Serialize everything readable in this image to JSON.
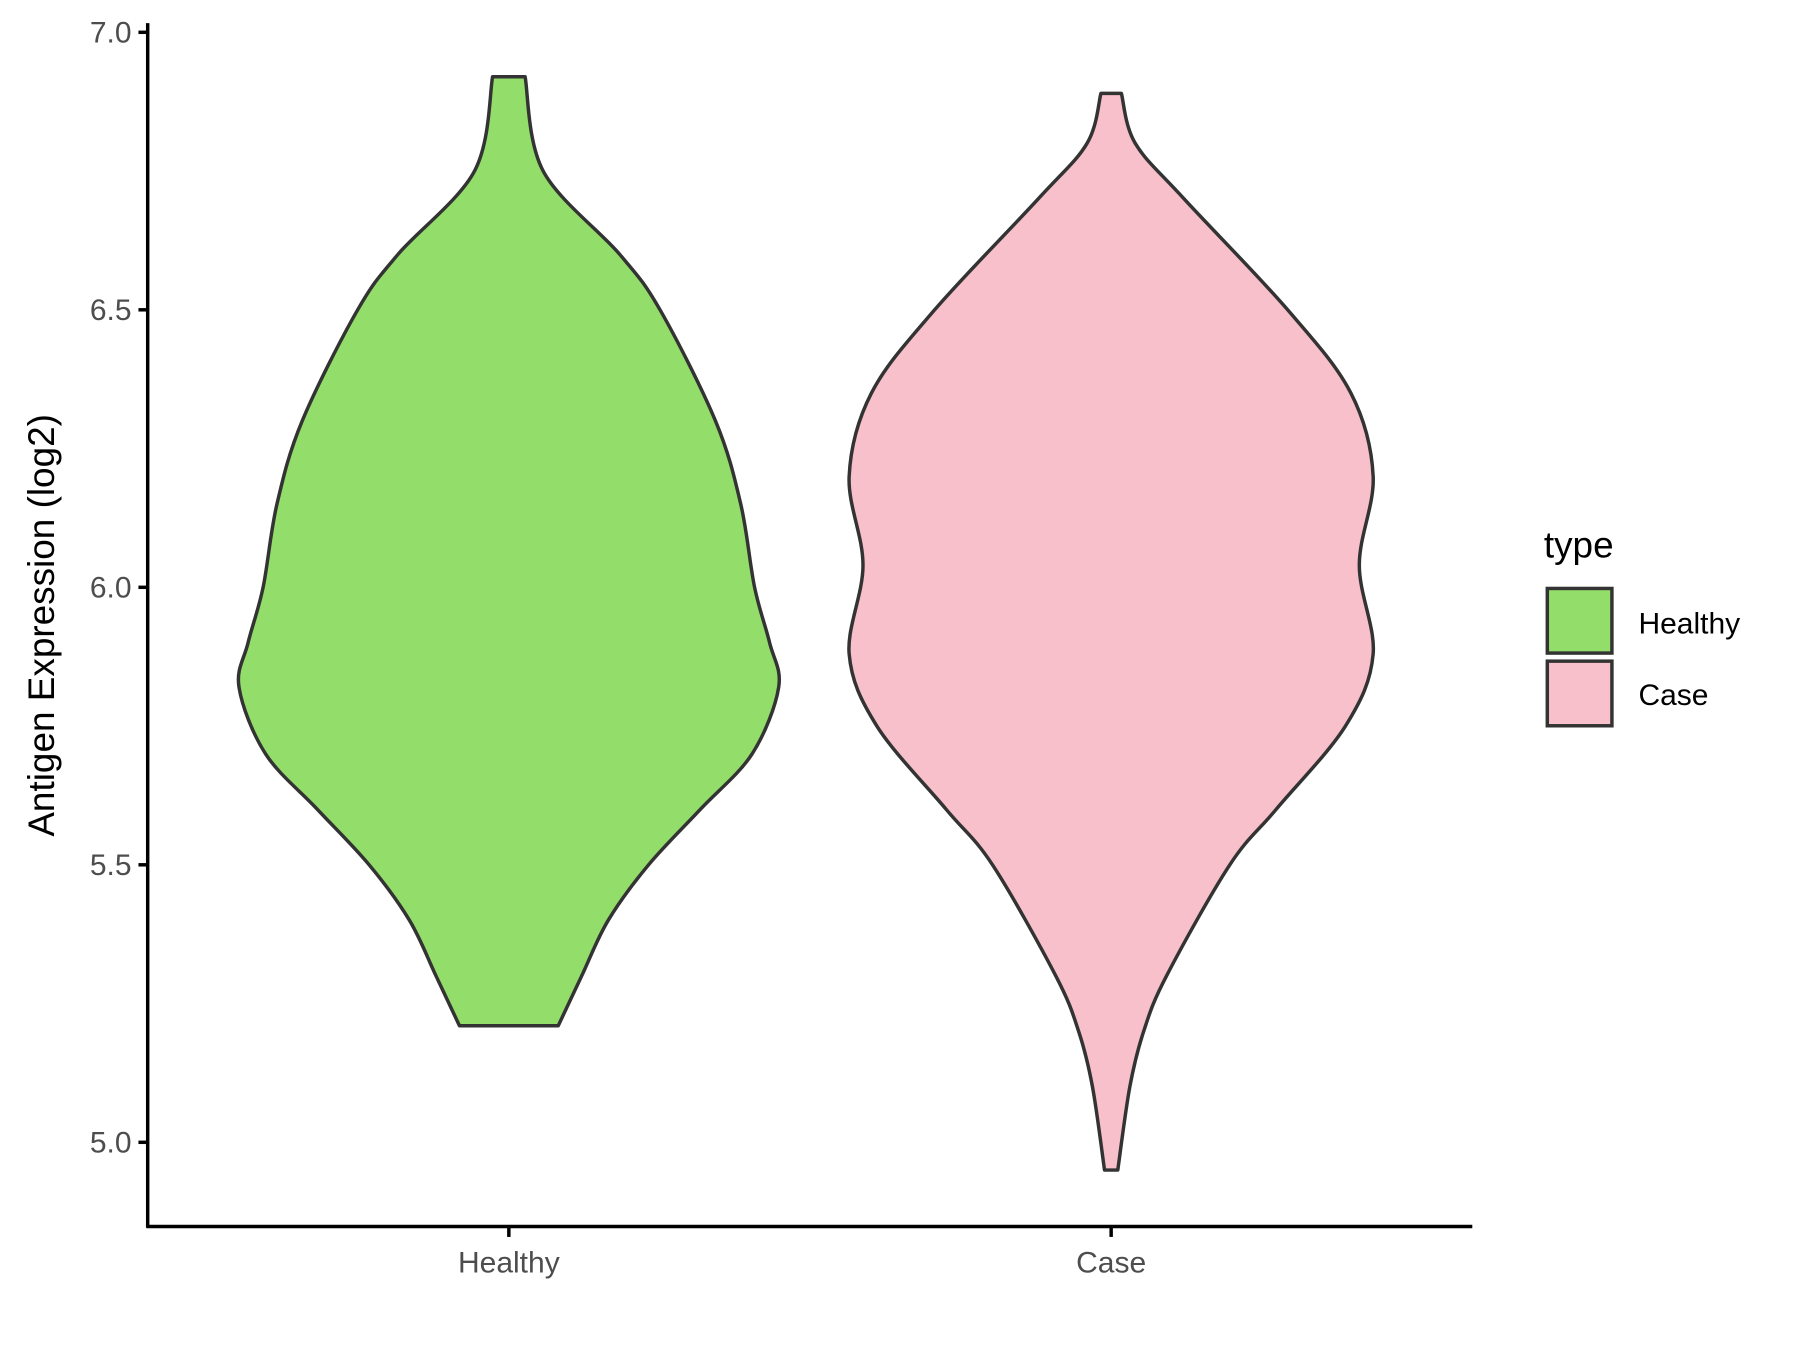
{
  "chart_data": {
    "type": "violin",
    "title": "",
    "xlabel": "",
    "ylabel": "Antigen Expression (log2)",
    "ylim": [
      4.85,
      7.02
    ],
    "yticks": [
      "5.0",
      "5.5",
      "6.0",
      "6.5",
      "7.0"
    ],
    "ytick_values": [
      5.0,
      5.5,
      6.0,
      6.5,
      7.0
    ],
    "categories": [
      "Healthy",
      "Case"
    ],
    "grid": false,
    "legend": {
      "title": "type",
      "position": "right",
      "entries": [
        "Healthy",
        "Case"
      ]
    },
    "series": [
      {
        "name": "Healthy",
        "color": "#93DD6A",
        "min": 5.21,
        "max": 6.92,
        "profile_y": [
          6.92,
          6.75,
          6.6,
          6.5,
          6.3,
          6.15,
          6.0,
          5.9,
          5.82,
          5.7,
          5.6,
          5.5,
          5.4,
          5.3,
          5.21
        ],
        "profile_halfwidth": [
          0.027,
          0.057,
          0.184,
          0.251,
          0.343,
          0.385,
          0.408,
          0.433,
          0.448,
          0.404,
          0.318,
          0.232,
          0.165,
          0.121,
          0.082
        ]
      },
      {
        "name": "Case",
        "color": "#F7C0CB",
        "min": 4.95,
        "max": 6.89,
        "profile_y": [
          6.89,
          6.8,
          6.7,
          6.5,
          6.35,
          6.2,
          6.04,
          5.88,
          5.75,
          5.6,
          5.5,
          5.3,
          5.2,
          5.1,
          4.95
        ],
        "profile_halfwidth": [
          0.017,
          0.04,
          0.121,
          0.293,
          0.398,
          0.435,
          0.412,
          0.435,
          0.389,
          0.274,
          0.197,
          0.092,
          0.054,
          0.031,
          0.011
        ]
      }
    ],
    "outline_color": "#333333"
  }
}
